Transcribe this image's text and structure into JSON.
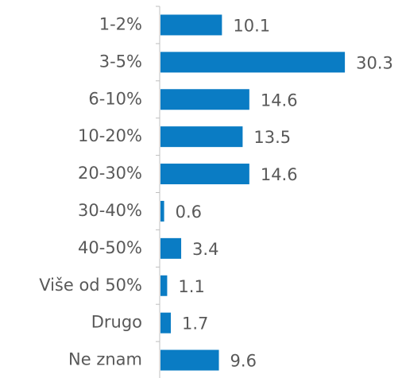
{
  "chart_data": {
    "type": "bar",
    "orientation": "horizontal",
    "categories": [
      "1-2%",
      "3-5%",
      "6-10%",
      "10-20%",
      "20-30%",
      "30-40%",
      "40-50%",
      "Više od 50%",
      "Drugo",
      "Ne znam"
    ],
    "values": [
      10.1,
      30.3,
      14.6,
      13.5,
      14.6,
      0.6,
      3.4,
      1.1,
      1.7,
      9.6
    ],
    "color": "#0a7cc4"
  }
}
